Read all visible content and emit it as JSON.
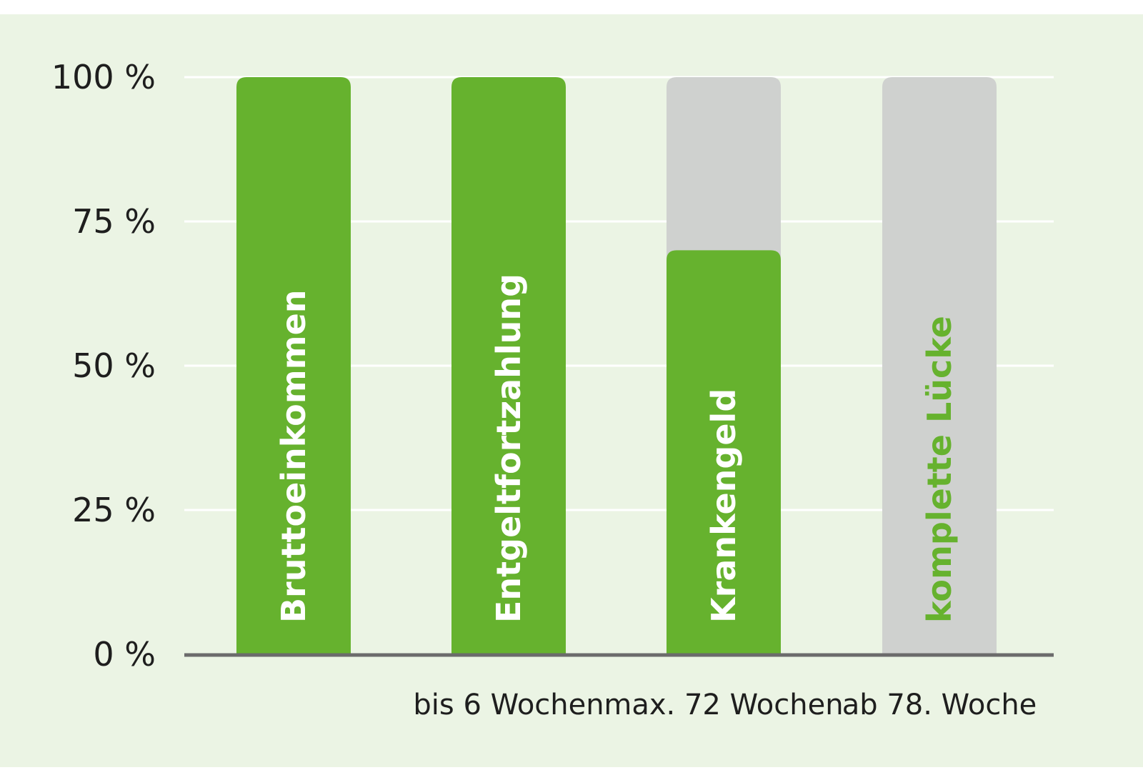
{
  "colors": {
    "panel": "#ebf4e4",
    "page": "#ffffff",
    "bar_green": "#66b22e",
    "bar_gray": "#cfd1cf",
    "label_on_green": "#ffffff",
    "label_on_gray": "#66b22e",
    "axis": "#6b6b6b",
    "grid": "#ffffff"
  },
  "chart_data": {
    "type": "bar",
    "title": "",
    "xlabel": "",
    "ylabel": "",
    "ylim": [
      0,
      100
    ],
    "y_ticks": [
      0,
      25,
      50,
      75,
      100
    ],
    "y_tick_labels": [
      "0 %",
      "25 %",
      "50 %",
      "75 %",
      "100 %"
    ],
    "grid": true,
    "legend": "none",
    "categories": [
      "",
      "bis 6 Wochen",
      "max. 72 Wochen",
      "ab 78. Woche"
    ],
    "bars": [
      {
        "category": "",
        "value": 100,
        "label": "Bruttoeinkommen",
        "color": "green"
      },
      {
        "category": "bis 6 Wochen",
        "value": 100,
        "label": "Entgeltfortzahlung",
        "color": "green"
      },
      {
        "category": "max. 72 Wochen",
        "value": 70,
        "label": "Krankengeld",
        "color": "green"
      },
      {
        "category": "ab 78. Woche",
        "value": 0,
        "label": "komplette Lücke",
        "color": "green"
      }
    ],
    "background_bars": [
      {
        "category": "max. 72 Wochen",
        "value": 100,
        "color": "gray"
      },
      {
        "category": "ab 78. Woche",
        "value": 100,
        "color": "gray"
      }
    ]
  }
}
